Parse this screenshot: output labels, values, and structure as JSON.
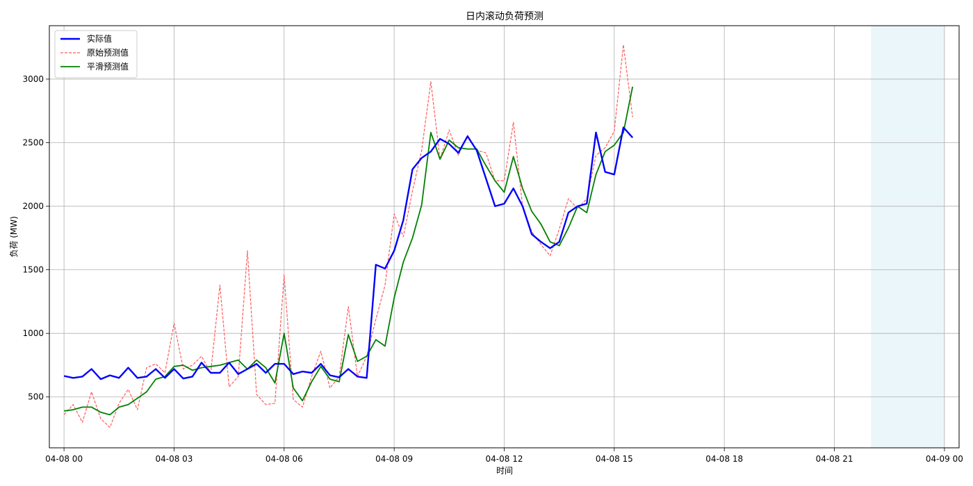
{
  "chart_data": {
    "type": "line",
    "title": "日内滚动负荷预测",
    "xlabel": "时间",
    "ylabel": "负荷 (MW)",
    "xlim": [
      -0.4,
      24.4
    ],
    "ylim": [
      100,
      3420
    ],
    "grid": true,
    "legend_position": "top-left",
    "x_ticks": [
      {
        "x": 0,
        "label": "04-08 00"
      },
      {
        "x": 3,
        "label": "04-08 03"
      },
      {
        "x": 6,
        "label": "04-08 06"
      },
      {
        "x": 9,
        "label": "04-08 09"
      },
      {
        "x": 12,
        "label": "04-08 12"
      },
      {
        "x": 15,
        "label": "04-08 15"
      },
      {
        "x": 18,
        "label": "04-08 18"
      },
      {
        "x": 21,
        "label": "04-08 21"
      },
      {
        "x": 24,
        "label": "04-09 00"
      }
    ],
    "y_ticks": [
      {
        "y": 500,
        "label": "500"
      },
      {
        "y": 1000,
        "label": "1000"
      },
      {
        "y": 1500,
        "label": "1500"
      },
      {
        "y": 2000,
        "label": "2000"
      },
      {
        "y": 2500,
        "label": "2500"
      },
      {
        "y": 3000,
        "label": "3000"
      }
    ],
    "shaded_region": {
      "x_start": 22,
      "x_end": 24,
      "color": "#eaf6fa"
    },
    "series": [
      {
        "name": "实际值",
        "color": "#0000ff",
        "style": "solid",
        "x": [
          0,
          0.25,
          0.5,
          0.75,
          1,
          1.25,
          1.5,
          1.75,
          2,
          2.25,
          2.5,
          2.75,
          3,
          3.25,
          3.5,
          3.75,
          4,
          4.25,
          4.5,
          4.75,
          5,
          5.25,
          5.5,
          5.75,
          6,
          6.25,
          6.5,
          6.75,
          7,
          7.25,
          7.5,
          7.75,
          8,
          8.25,
          8.5,
          8.75,
          9,
          9.25,
          9.5,
          9.75,
          10,
          10.25,
          10.5,
          10.75,
          11,
          11.25,
          11.5,
          11.75,
          12,
          12.25,
          12.5,
          12.75,
          13,
          13.25,
          13.5,
          13.75,
          14,
          14.25,
          14.5,
          14.75,
          15,
          15.25,
          15.5
        ],
        "values": [
          665,
          650,
          660,
          720,
          640,
          670,
          650,
          730,
          650,
          660,
          720,
          650,
          720,
          645,
          660,
          770,
          690,
          690,
          770,
          680,
          720,
          760,
          690,
          760,
          760,
          680,
          700,
          690,
          760,
          670,
          655,
          720,
          660,
          650,
          1540,
          1510,
          1650,
          1890,
          2290,
          2380,
          2430,
          2530,
          2490,
          2420,
          2550,
          2440,
          2220,
          2000,
          2020,
          2140,
          2000,
          1780,
          1720,
          1670,
          1720,
          1950,
          2000,
          2020,
          2580,
          2270,
          2250,
          2620,
          2540
        ]
      },
      {
        "name": "原始预测值",
        "color": "#ff5a5a",
        "style": "dashed",
        "x": [
          0,
          0.25,
          0.5,
          0.75,
          1,
          1.25,
          1.5,
          1.75,
          2,
          2.25,
          2.5,
          2.75,
          3,
          3.25,
          3.5,
          3.75,
          4,
          4.25,
          4.5,
          4.75,
          5,
          5.25,
          5.5,
          5.75,
          6,
          6.25,
          6.5,
          6.75,
          7,
          7.25,
          7.5,
          7.75,
          8,
          8.25,
          8.5,
          8.75,
          9,
          9.25,
          9.5,
          9.75,
          10,
          10.25,
          10.5,
          10.75,
          11,
          11.25,
          11.5,
          11.75,
          12,
          12.25,
          12.5,
          12.75,
          13,
          13.25,
          13.5,
          13.75,
          14,
          14.25,
          14.5,
          14.75,
          15,
          15.25,
          15.5
        ],
        "values": [
          360,
          440,
          300,
          540,
          330,
          260,
          450,
          560,
          400,
          730,
          760,
          690,
          1080,
          720,
          750,
          820,
          690,
          1380,
          580,
          660,
          1650,
          520,
          440,
          450,
          1460,
          480,
          420,
          660,
          860,
          570,
          660,
          1210,
          660,
          820,
          1110,
          1380,
          1940,
          1760,
          2120,
          2440,
          2980,
          2370,
          2600,
          2400,
          2560,
          2440,
          2420,
          2200,
          2200,
          2660,
          2000,
          1800,
          1700,
          1610,
          1820,
          2060,
          1980,
          2060,
          2400,
          2460,
          2590,
          3270,
          2700
        ]
      },
      {
        "name": "平滑预测值",
        "color": "#008000",
        "style": "solid",
        "x": [
          0,
          0.25,
          0.5,
          0.75,
          1,
          1.25,
          1.5,
          1.75,
          2,
          2.25,
          2.5,
          2.75,
          3,
          3.25,
          3.5,
          3.75,
          4,
          4.25,
          4.5,
          4.75,
          5,
          5.25,
          5.5,
          5.75,
          6,
          6.25,
          6.5,
          6.75,
          7,
          7.25,
          7.5,
          7.75,
          8,
          8.25,
          8.5,
          8.75,
          9,
          9.25,
          9.5,
          9.75,
          10,
          10.25,
          10.5,
          10.75,
          11,
          11.25,
          11.5,
          11.75,
          12,
          12.25,
          12.5,
          12.75,
          13,
          13.25,
          13.5,
          13.75,
          14,
          14.25,
          14.5,
          14.75,
          15,
          15.25,
          15.5
        ],
        "values": [
          390,
          400,
          420,
          420,
          380,
          360,
          420,
          440,
          490,
          540,
          640,
          660,
          740,
          750,
          710,
          730,
          740,
          750,
          770,
          790,
          720,
          790,
          730,
          610,
          1000,
          570,
          470,
          620,
          740,
          640,
          620,
          990,
          780,
          820,
          950,
          900,
          1280,
          1560,
          1750,
          2010,
          2580,
          2370,
          2520,
          2460,
          2450,
          2450,
          2320,
          2200,
          2110,
          2390,
          2140,
          1960,
          1860,
          1720,
          1690,
          1830,
          2000,
          1950,
          2250,
          2430,
          2480,
          2580,
          2940
        ]
      }
    ]
  }
}
